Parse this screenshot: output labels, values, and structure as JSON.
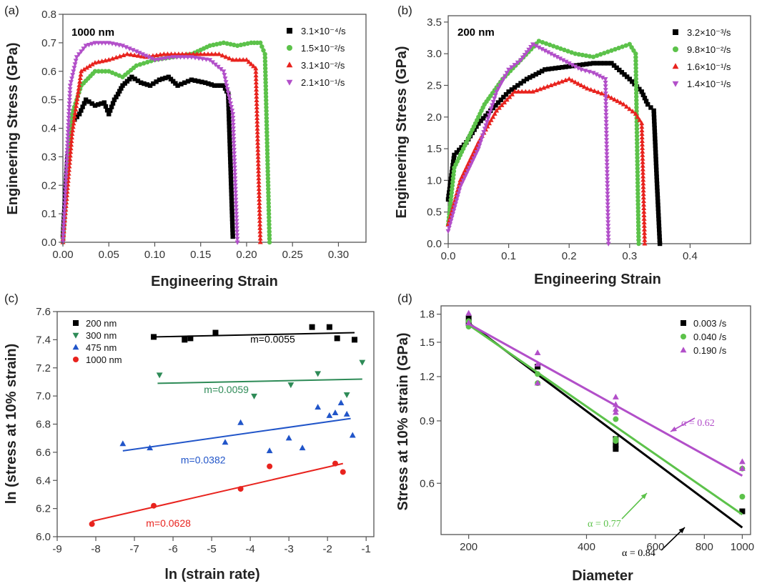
{
  "chart_data": [
    {
      "panel_label": "(a)",
      "type": "line",
      "annotation": "1000 nm",
      "xlabel": "Engineering Strain",
      "ylabel": "Engineering Stress (GPa)",
      "xlim": [
        0,
        0.33
      ],
      "ylim": [
        0,
        0.8
      ],
      "xticks": [
        "0.00",
        "0.05",
        "0.10",
        "0.15",
        "0.20",
        "0.25",
        "0.30"
      ],
      "yticks": [
        "0.0",
        "0.1",
        "0.2",
        "0.3",
        "0.4",
        "0.5",
        "0.6",
        "0.7",
        "0.8"
      ],
      "legend_position": "top-right",
      "series": [
        {
          "name": "3.1×10⁻⁴/s",
          "color": "#000000",
          "marker": "square",
          "x": [
            0,
            0.005,
            0.01,
            0.018,
            0.025,
            0.035,
            0.045,
            0.05,
            0.056,
            0.06,
            0.065,
            0.075,
            0.085,
            0.095,
            0.105,
            0.115,
            0.125,
            0.14,
            0.155,
            0.165,
            0.175,
            0.18,
            0.185
          ],
          "y": [
            0.02,
            0.3,
            0.42,
            0.45,
            0.5,
            0.48,
            0.49,
            0.45,
            0.5,
            0.52,
            0.55,
            0.58,
            0.56,
            0.55,
            0.57,
            0.58,
            0.55,
            0.57,
            0.56,
            0.55,
            0.55,
            0.52,
            0.02
          ]
        },
        {
          "name": "1.5×10⁻²/s",
          "color": "#5cc24a",
          "marker": "circle",
          "x": [
            0,
            0.01,
            0.02,
            0.035,
            0.05,
            0.065,
            0.08,
            0.1,
            0.12,
            0.14,
            0.16,
            0.175,
            0.19,
            0.205,
            0.215,
            0.22,
            0.225
          ],
          "y": [
            0.0,
            0.45,
            0.55,
            0.6,
            0.6,
            0.58,
            0.62,
            0.64,
            0.65,
            0.66,
            0.69,
            0.7,
            0.69,
            0.7,
            0.7,
            0.66,
            0.0
          ]
        },
        {
          "name": "3.1×10⁻²/s",
          "color": "#e8231e",
          "marker": "triangle",
          "x": [
            0,
            0.01,
            0.02,
            0.035,
            0.05,
            0.07,
            0.09,
            0.11,
            0.13,
            0.15,
            0.17,
            0.185,
            0.2,
            0.21,
            0.215
          ],
          "y": [
            0.0,
            0.38,
            0.6,
            0.63,
            0.64,
            0.66,
            0.65,
            0.66,
            0.66,
            0.66,
            0.66,
            0.64,
            0.64,
            0.61,
            0.0
          ]
        },
        {
          "name": "2.1×10⁻¹/s",
          "color": "#b24fc9",
          "marker": "triangle-down",
          "x": [
            0,
            0.008,
            0.015,
            0.025,
            0.035,
            0.05,
            0.065,
            0.08,
            0.1,
            0.12,
            0.14,
            0.16,
            0.175,
            0.185,
            0.19
          ],
          "y": [
            0.0,
            0.55,
            0.65,
            0.69,
            0.7,
            0.7,
            0.69,
            0.67,
            0.64,
            0.65,
            0.65,
            0.64,
            0.6,
            0.45,
            0.0
          ]
        }
      ]
    },
    {
      "panel_label": "(b)",
      "type": "line",
      "annotation": "200 nm",
      "xlabel": "Engineering Strain",
      "ylabel": "Engineering Stress (GPa)",
      "xlim": [
        0,
        0.5
      ],
      "ylim": [
        0,
        3.6
      ],
      "xticks": [
        "0.0",
        "0.1",
        "0.2",
        "0.3",
        "0.4"
      ],
      "yticks": [
        "0.0",
        "0.5",
        "1.0",
        "1.5",
        "2.0",
        "2.5",
        "3.0",
        "3.5"
      ],
      "legend_position": "top-right",
      "series": [
        {
          "name": "3.2×10⁻³/s",
          "color": "#000000",
          "marker": "square",
          "x": [
            0,
            0.01,
            0.03,
            0.05,
            0.07,
            0.1,
            0.13,
            0.16,
            0.2,
            0.24,
            0.27,
            0.3,
            0.32,
            0.33,
            0.34,
            0.345,
            0.35
          ],
          "y": [
            0.7,
            1.4,
            1.6,
            1.9,
            2.1,
            2.4,
            2.6,
            2.75,
            2.8,
            2.85,
            2.85,
            2.6,
            2.4,
            2.2,
            2.1,
            1.0,
            0.0
          ]
        },
        {
          "name": "9.8×10⁻²/s",
          "color": "#5cc24a",
          "marker": "circle",
          "x": [
            0,
            0.01,
            0.03,
            0.06,
            0.09,
            0.12,
            0.15,
            0.18,
            0.21,
            0.24,
            0.27,
            0.3,
            0.31,
            0.315
          ],
          "y": [
            0.3,
            1.2,
            1.6,
            2.2,
            2.6,
            2.9,
            3.2,
            3.1,
            3.0,
            2.95,
            3.05,
            3.15,
            3.0,
            0.0
          ]
        },
        {
          "name": "1.6×10⁻¹/s",
          "color": "#e8231e",
          "marker": "triangle",
          "x": [
            0,
            0.02,
            0.05,
            0.08,
            0.11,
            0.14,
            0.17,
            0.2,
            0.23,
            0.26,
            0.29,
            0.31,
            0.32,
            0.325
          ],
          "y": [
            0.3,
            1.0,
            1.6,
            2.1,
            2.4,
            2.4,
            2.5,
            2.6,
            2.45,
            2.35,
            2.2,
            2.05,
            1.9,
            0.0
          ]
        },
        {
          "name": "1.4×10⁻¹/s",
          "color": "#b24fc9",
          "marker": "triangle-down",
          "x": [
            0,
            0.02,
            0.05,
            0.08,
            0.1,
            0.12,
            0.14,
            0.17,
            0.2,
            0.22,
            0.24,
            0.26,
            0.265
          ],
          "y": [
            0.2,
            0.9,
            1.5,
            2.4,
            2.75,
            2.9,
            3.15,
            3.0,
            2.85,
            2.75,
            2.7,
            2.6,
            0.0
          ]
        }
      ]
    },
    {
      "panel_label": "(c)",
      "type": "scatter",
      "xlabel": "ln (strain rate)",
      "ylabel": "ln (stress at 10% strain)",
      "xlim": [
        -9,
        -0.8
      ],
      "ylim": [
        6.0,
        7.6
      ],
      "xticks": [
        "-9",
        "-8",
        "-7",
        "-6",
        "-5",
        "-4",
        "-3",
        "-2",
        "-1"
      ],
      "yticks": [
        "6.0",
        "6.2",
        "6.4",
        "6.6",
        "6.8",
        "7.0",
        "7.2",
        "7.4",
        "7.6"
      ],
      "legend_position": "top-left",
      "series": [
        {
          "name": "200 nm",
          "color": "#000000",
          "marker": "square",
          "fit_label": "m=0.0055",
          "fit": [
            [
              -6.5,
              7.42
            ],
            [
              -1.3,
              7.45
            ]
          ],
          "x": [
            -6.5,
            -5.7,
            -5.55,
            -4.9,
            -2.4,
            -1.95,
            -1.75,
            -1.3
          ],
          "y": [
            7.42,
            7.4,
            7.41,
            7.45,
            7.49,
            7.49,
            7.41,
            7.4
          ]
        },
        {
          "name": "300 nm",
          "color": "#2e8b57",
          "marker": "triangle-down",
          "fit_label": "m=0.0059",
          "fit": [
            [
              -6.4,
              7.09
            ],
            [
              -1.1,
              7.12
            ]
          ],
          "x": [
            -6.35,
            -3.9,
            -2.95,
            -2.25,
            -1.5,
            -1.1
          ],
          "y": [
            7.15,
            7.0,
            7.08,
            7.16,
            7.01,
            7.24
          ]
        },
        {
          "name": "475 nm",
          "color": "#2155c9",
          "marker": "triangle",
          "fit_label": "m=0.0382",
          "fit": [
            [
              -7.3,
              6.61
            ],
            [
              -1.4,
              6.84
            ]
          ],
          "x": [
            -7.3,
            -6.6,
            -4.65,
            -4.25,
            -3.5,
            -3.0,
            -2.65,
            -2.25,
            -1.95,
            -1.8,
            -1.65,
            -1.5,
            -1.35
          ],
          "y": [
            6.66,
            6.63,
            6.67,
            6.81,
            6.61,
            6.7,
            6.63,
            6.92,
            6.86,
            6.88,
            6.95,
            6.87,
            6.72
          ]
        },
        {
          "name": "1000 nm",
          "color": "#e8231e",
          "marker": "circle",
          "fit_label": "m=0.0628",
          "fit": [
            [
              -8.1,
              6.11
            ],
            [
              -1.6,
              6.52
            ]
          ],
          "x": [
            -8.1,
            -6.5,
            -4.25,
            -3.5,
            -1.8,
            -1.6
          ],
          "y": [
            6.09,
            6.22,
            6.34,
            6.5,
            6.52,
            6.46
          ]
        }
      ]
    },
    {
      "panel_label": "(d)",
      "type": "scatter",
      "xlabel": "Diameter",
      "ylabel": "Stress at 10% strain (GPa)",
      "xscale": "log",
      "yscale": "log",
      "xlim": [
        170,
        1050
      ],
      "ylim": [
        0.43,
        1.9
      ],
      "xticks": [
        "200",
        "400",
        "600",
        "800",
        "1000"
      ],
      "yticks": [
        "0.6",
        "0.9",
        "1.2",
        "1.5",
        "1.8"
      ],
      "legend_position": "top-right",
      "series": [
        {
          "name": "0.003 /s",
          "color": "#000000",
          "marker": "square",
          "fit_label": "α = 0.84",
          "fit": [
            [
              200,
              1.7
            ],
            [
              1000,
              0.45
            ]
          ],
          "x": [
            200,
            200,
            300,
            475,
            475,
            475,
            1000
          ],
          "y": [
            1.75,
            1.7,
            1.28,
            0.77,
            0.8,
            0.75,
            0.5
          ]
        },
        {
          "name": "0.040 /s",
          "color": "#5cc24a",
          "marker": "circle",
          "fit_label": "α = 0.77",
          "fit": [
            [
              200,
              1.68
            ],
            [
              1000,
              0.49
            ]
          ],
          "x": [
            200,
            200,
            300,
            300,
            475,
            475,
            475,
            1000,
            1000
          ],
          "y": [
            1.72,
            1.66,
            1.15,
            1.22,
            0.91,
            0.8,
            0.79,
            0.55,
            0.66
          ]
        },
        {
          "name": "0.190 /s",
          "color": "#b24fc9",
          "marker": "triangle",
          "fit_label": "α = 0.62",
          "fit": [
            [
              200,
              1.69
            ],
            [
              1000,
              0.63
            ]
          ],
          "x": [
            200,
            200,
            300,
            300,
            300,
            475,
            475,
            475,
            475,
            1000,
            1000
          ],
          "y": [
            1.81,
            1.7,
            1.4,
            1.15,
            1.3,
            1.05,
            1.0,
            0.97,
            0.95,
            0.69,
            0.66
          ]
        }
      ]
    }
  ]
}
